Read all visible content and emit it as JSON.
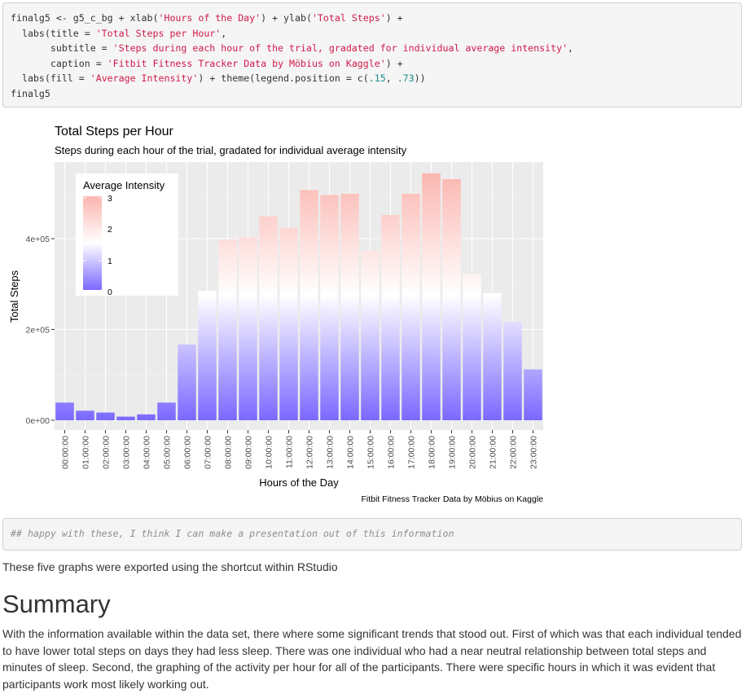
{
  "code_block": {
    "line1_a": "finalg5 <- g5_c_bg + xlab(",
    "line1_s1": "'Hours of the Day'",
    "line1_b": ") + ylab(",
    "line1_s2": "'Total Steps'",
    "line1_c": ") +",
    "line2_a": "  labs(title = ",
    "line2_s": "'Total Steps per Hour'",
    "line2_b": ",",
    "line3_a": "       subtitle = ",
    "line3_s": "'Steps during each hour of the trial, gradated for individual average intensity'",
    "line3_b": ",",
    "line4_a": "       caption = ",
    "line4_s": "'Fitbit Fitness Tracker Data by Möbius on Kaggle'",
    "line4_b": ") +",
    "line5_a": "  labs(fill = ",
    "line5_s": "'Average Intensity'",
    "line5_b": ") + theme(legend.position = c(",
    "line5_n1": ".15",
    "line5_c": ", ",
    "line5_n2": ".73",
    "line5_d": "))",
    "line6": "finalg5"
  },
  "chart_data": {
    "type": "bar",
    "title": "Total Steps per Hour",
    "subtitle": "Steps during each hour of the trial, gradated for individual average intensity",
    "xlabel": "Hours of the Day",
    "ylabel": "Total Steps",
    "caption": "Fitbit Fitness Tracker Data by Möbius on Kaggle",
    "categories": [
      "00:00:00",
      "01:00:00",
      "02:00:00",
      "03:00:00",
      "04:00:00",
      "05:00:00",
      "06:00:00",
      "07:00:00",
      "08:00:00",
      "09:00:00",
      "10:00:00",
      "11:00:00",
      "12:00:00",
      "13:00:00",
      "14:00:00",
      "15:00:00",
      "16:00:00",
      "17:00:00",
      "18:00:00",
      "19:00:00",
      "20:00:00",
      "21:00:00",
      "22:00:00",
      "23:00:00"
    ],
    "values": [
      39000,
      21000,
      17000,
      8000,
      13000,
      39000,
      167000,
      285000,
      398000,
      403000,
      449000,
      424000,
      507000,
      496000,
      499000,
      373000,
      452000,
      499000,
      544000,
      531000,
      322000,
      280000,
      217000,
      112000
    ],
    "y_ticks": [
      "0e+00",
      "2e+05",
      "4e+05"
    ],
    "y_tick_values": [
      0,
      200000,
      400000
    ],
    "ylim": [
      0,
      580000
    ],
    "legend": {
      "title": "Average Intensity",
      "labels": [
        "3",
        "2",
        "1",
        "0"
      ],
      "position": "top-left"
    },
    "colors": {
      "low": "#7b68ff",
      "mid": "#ffffff",
      "high": "#fbb4ae",
      "panel": "#ebebeb"
    }
  },
  "after_code": "## happy with these, I think I can make a presentation out of this information",
  "paragraph1": "These five graphs were exported using the shortcut within RStudio",
  "heading": "Summary",
  "paragraph2": "With the information available within the data set, there where some significant trends that stood out. First of which was that each individual tended to have lower total steps on days they had less sleep. There was one individual who had a near neutral relationship between total steps and minutes of sleep. Second, the graphing of the activity per hour for all of the participants. There were specific hours in which it was evident that participants work most likely working out."
}
